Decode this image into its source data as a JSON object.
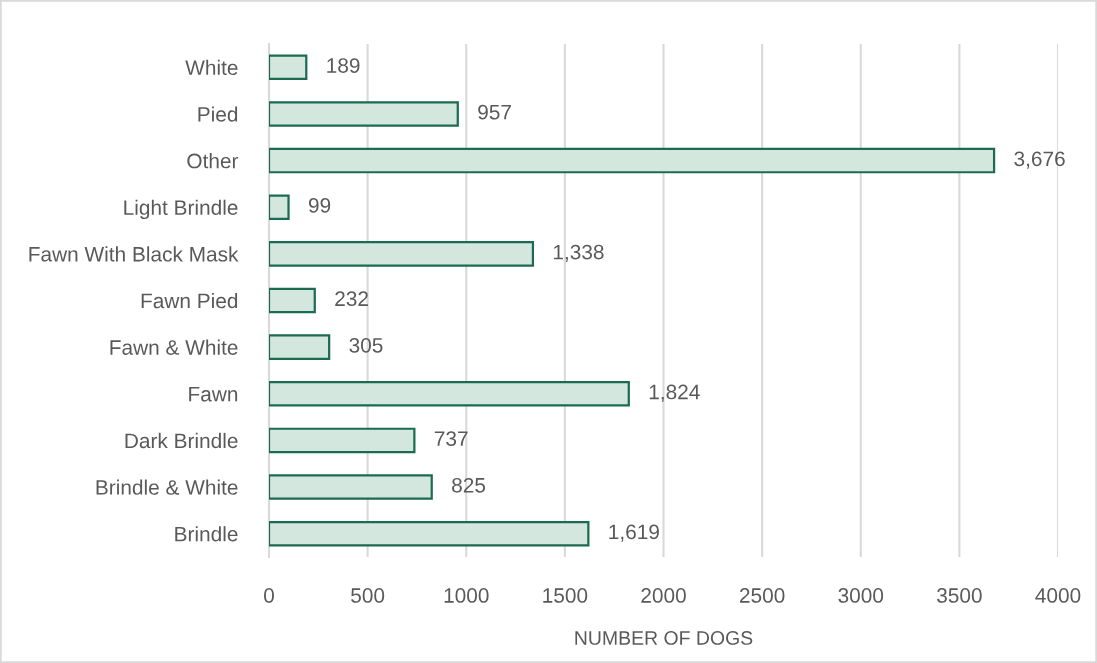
{
  "chart_data": {
    "type": "bar",
    "orientation": "horizontal",
    "categories": [
      "White",
      "Pied",
      "Other",
      "Light Brindle",
      "Fawn With Black Mask",
      "Fawn Pied",
      "Fawn & White",
      "Fawn",
      "Dark Brindle",
      "Brindle & White",
      "Brindle"
    ],
    "values": [
      189,
      957,
      3676,
      99,
      1338,
      232,
      305,
      1824,
      737,
      825,
      1619
    ],
    "value_labels": [
      "189",
      "957",
      "3,676",
      "99",
      "1,338",
      "232",
      "305",
      "1,824",
      "737",
      "825",
      "1,619"
    ],
    "color": "#d4e7df",
    "xlabel": "NUMBER OF DOGS",
    "xlim": [
      0,
      4000
    ],
    "xticks": [
      0,
      500,
      1000,
      1500,
      2000,
      2500,
      3000,
      3500,
      4000
    ],
    "grid": "x"
  }
}
